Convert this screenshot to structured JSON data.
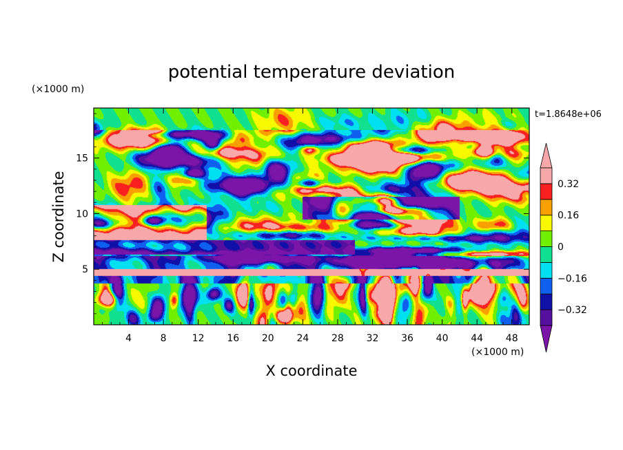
{
  "chart_data": {
    "type": "heatmap",
    "title": "potential temperature deviation",
    "xlabel": "X coordinate",
    "ylabel": "Z coordinate",
    "x_unit": "(×1000 m)",
    "y_unit": "(×1000 m)",
    "time_label": "t=1.8648e+06",
    "xlim": [
      0,
      50
    ],
    "ylim": [
      0,
      19.5
    ],
    "x_ticks": [
      4,
      8,
      12,
      16,
      20,
      24,
      28,
      32,
      36,
      40,
      44,
      48
    ],
    "y_ticks": [
      5,
      10,
      15
    ],
    "colorbar": {
      "levels": [
        -0.4,
        -0.32,
        -0.24,
        -0.16,
        -0.08,
        0,
        0.08,
        0.16,
        0.24,
        0.32,
        0.4
      ],
      "labels": [
        "0.32",
        "0.16",
        "0",
        "−0.16",
        "−0.32"
      ],
      "label_values": [
        0.32,
        0.16,
        0,
        -0.16,
        -0.32
      ],
      "extend": "both",
      "colors": [
        "#7a15a8",
        "#5510a0",
        "#1010a8",
        "#1060f0",
        "#00e0f0",
        "#10e090",
        "#70f000",
        "#f8f800",
        "#f8a000",
        "#f82020",
        "#f8a8a8"
      ]
    }
  }
}
